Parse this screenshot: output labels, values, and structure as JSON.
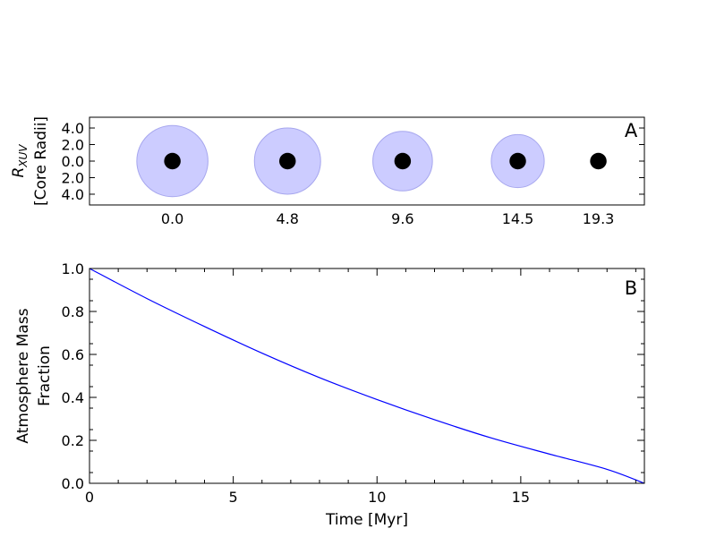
{
  "chart_data": [
    {
      "type": "scatter",
      "panel_label": "A",
      "ylabel_symbol": "R",
      "ylabel_subscript": "XUV",
      "ylabel_unit": "[Core Radii]",
      "y_tick_labels": [
        "4.0",
        "2.0",
        "0.0",
        "2.0",
        "4.0"
      ],
      "y_tick_values": [
        4,
        2,
        0,
        -2,
        -4
      ],
      "ylim": [
        -5.3,
        5.3
      ],
      "x_tick_labels": [
        "0.0",
        "4.8",
        "9.6",
        "14.5",
        "19.3"
      ],
      "x_positions": [
        0.0,
        1.0,
        2.0,
        3.0,
        3.7
      ],
      "xlim": [
        -0.72,
        4.1
      ],
      "core_radius": 1.0,
      "xuv_radii": [
        4.3,
        4.0,
        3.6,
        3.2,
        0
      ],
      "xuv_color": "#ccccff",
      "xuv_edge_color": "#a7a7ee",
      "core_color": "#000000",
      "grid": false
    },
    {
      "type": "line",
      "panel_label": "B",
      "xlabel": "Time [Myr]",
      "ylabel_lines": [
        "Atmosphere Mass",
        "Fraction"
      ],
      "xlim": [
        0,
        19.3
      ],
      "ylim": [
        0,
        1.0
      ],
      "x_ticks": [
        0,
        5,
        10,
        15
      ],
      "x_tick_labels": [
        "0",
        "5",
        "10",
        "15"
      ],
      "y_ticks": [
        0,
        0.2,
        0.4,
        0.6,
        0.8,
        1.0
      ],
      "y_tick_labels": [
        "0.0",
        "0.2",
        "0.4",
        "0.6",
        "0.8",
        "1.0"
      ],
      "series": [
        {
          "color": "#0000ff",
          "x": [
            0,
            2,
            4,
            6,
            8,
            10,
            12,
            14,
            16,
            18,
            19.3
          ],
          "y": [
            1.0,
            0.86,
            0.73,
            0.606,
            0.492,
            0.39,
            0.296,
            0.21,
            0.136,
            0.065,
            0.0
          ]
        }
      ],
      "grid": false
    }
  ]
}
